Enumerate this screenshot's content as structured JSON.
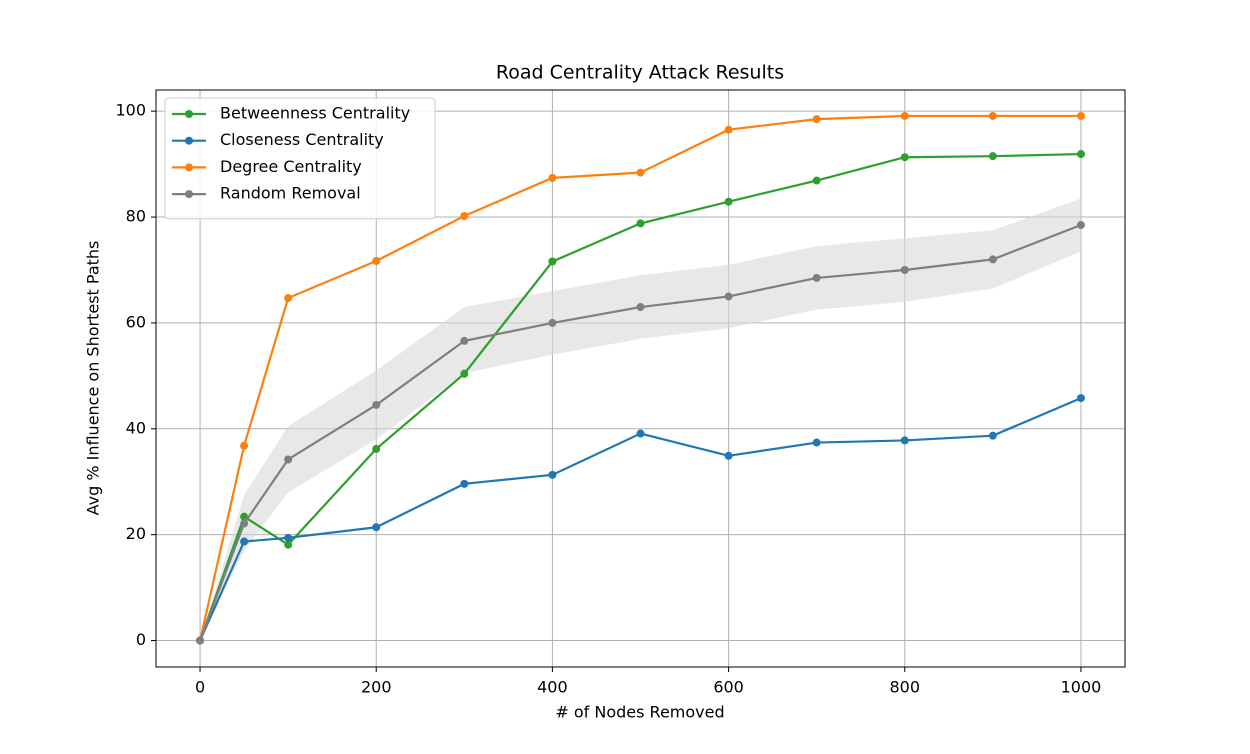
{
  "chart_data": {
    "type": "line",
    "title": "Road Centrality Attack Results",
    "xlabel": "# of Nodes Removed",
    "ylabel": "Avg % Influence on Shortest Paths",
    "x": [
      0,
      50,
      100,
      200,
      300,
      400,
      500,
      600,
      700,
      800,
      900,
      1000
    ],
    "series": [
      {
        "name": "Betweenness Centrality",
        "color": "#2ca02c",
        "values": [
          0,
          23.4,
          18.1,
          36.2,
          50.4,
          71.6,
          78.8,
          82.9,
          86.9,
          91.3,
          91.5,
          91.9
        ]
      },
      {
        "name": "Closeness Centrality",
        "color": "#1f77b4",
        "values": [
          0,
          18.7,
          19.4,
          21.4,
          29.6,
          31.3,
          39.1,
          34.9,
          37.4,
          37.8,
          38.7,
          45.8
        ]
      },
      {
        "name": "Degree Centrality",
        "color": "#ff7f0e",
        "values": [
          0,
          36.8,
          64.7,
          71.7,
          80.2,
          87.4,
          88.4,
          96.5,
          98.5,
          99.1,
          99.1,
          99.1
        ]
      },
      {
        "name": "Random Removal",
        "color": "#7f7f7f",
        "values": [
          0,
          22.1,
          34.2,
          44.5,
          56.6,
          60,
          63,
          65,
          68.5,
          70,
          72,
          78.5
        ],
        "band": {
          "lower": [
            0,
            17,
            28,
            38,
            50.5,
            54,
            57,
            59,
            62.5,
            64,
            66.5,
            73.5
          ],
          "upper": [
            0,
            27.5,
            40.5,
            51,
            63,
            66,
            69,
            71,
            74.5,
            76,
            77.5,
            83.5
          ],
          "color": "#d9d9d9"
        }
      }
    ],
    "xlim": [
      -50,
      1050
    ],
    "ylim": [
      -5,
      104
    ],
    "xticks": [
      0,
      200,
      400,
      600,
      800,
      1000
    ],
    "yticks": [
      0,
      20,
      40,
      60,
      80,
      100
    ],
    "grid": true,
    "legend": "upper left"
  }
}
